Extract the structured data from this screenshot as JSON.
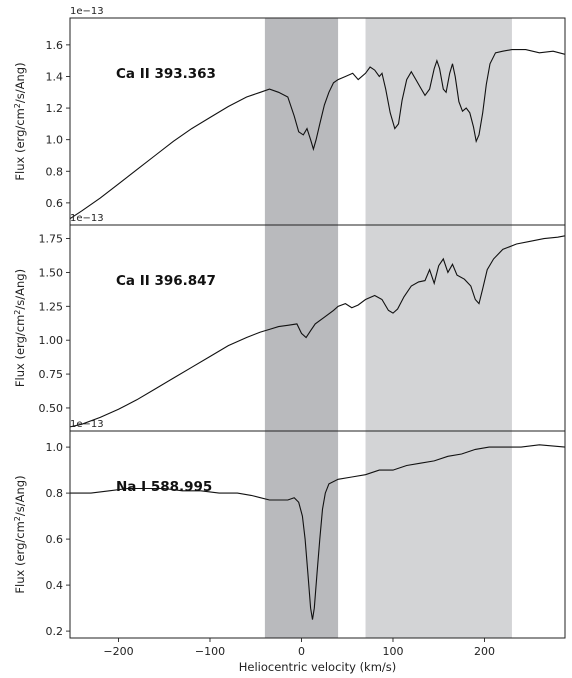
{
  "chart_data": {
    "type": "line",
    "xlabel": "Heliocentric velocity (km/s)",
    "xlim": [
      -253,
      288
    ],
    "x_ticks": [
      -200,
      -100,
      0,
      100,
      200
    ],
    "x_tick_labels": [
      "−200",
      "−100",
      "0",
      "100",
      "200"
    ],
    "shaded_regions": [
      {
        "x": [
          -40,
          40
        ],
        "color": "#b9babd"
      },
      {
        "x": [
          70,
          230
        ],
        "color": "#d3d4d6"
      }
    ],
    "panels": [
      {
        "label": "Ca II 393.363",
        "ylabel": "Flux (erg/cm²/s/Ang)",
        "offset_text": "1e−13",
        "ylim": [
          0.46,
          1.77
        ],
        "y_ticks": [
          0.6,
          0.8,
          1.0,
          1.2,
          1.4,
          1.6
        ],
        "y_tick_labels": [
          "0.6",
          "0.8",
          "1.0",
          "1.2",
          "1.4",
          "1.6"
        ],
        "points": [
          [
            -253,
            0.5
          ],
          [
            -240,
            0.55
          ],
          [
            -220,
            0.63
          ],
          [
            -200,
            0.72
          ],
          [
            -180,
            0.81
          ],
          [
            -160,
            0.9
          ],
          [
            -140,
            0.99
          ],
          [
            -120,
            1.07
          ],
          [
            -100,
            1.14
          ],
          [
            -80,
            1.21
          ],
          [
            -60,
            1.27
          ],
          [
            -45,
            1.3
          ],
          [
            -35,
            1.32
          ],
          [
            -25,
            1.3
          ],
          [
            -15,
            1.27
          ],
          [
            -8,
            1.15
          ],
          [
            -3,
            1.05
          ],
          [
            2,
            1.03
          ],
          [
            6,
            1.07
          ],
          [
            10,
            1.0
          ],
          [
            13,
            0.94
          ],
          [
            16,
            1.0
          ],
          [
            20,
            1.1
          ],
          [
            25,
            1.22
          ],
          [
            30,
            1.3
          ],
          [
            35,
            1.36
          ],
          [
            40,
            1.38
          ],
          [
            48,
            1.4
          ],
          [
            56,
            1.42
          ],
          [
            62,
            1.38
          ],
          [
            70,
            1.42
          ],
          [
            75,
            1.46
          ],
          [
            80,
            1.44
          ],
          [
            85,
            1.4
          ],
          [
            88,
            1.42
          ],
          [
            92,
            1.32
          ],
          [
            97,
            1.17
          ],
          [
            102,
            1.07
          ],
          [
            106,
            1.1
          ],
          [
            110,
            1.25
          ],
          [
            115,
            1.38
          ],
          [
            120,
            1.43
          ],
          [
            125,
            1.38
          ],
          [
            130,
            1.33
          ],
          [
            135,
            1.28
          ],
          [
            140,
            1.32
          ],
          [
            145,
            1.45
          ],
          [
            148,
            1.5
          ],
          [
            151,
            1.45
          ],
          [
            155,
            1.32
          ],
          [
            158,
            1.3
          ],
          [
            162,
            1.42
          ],
          [
            165,
            1.48
          ],
          [
            168,
            1.4
          ],
          [
            172,
            1.24
          ],
          [
            176,
            1.18
          ],
          [
            180,
            1.2
          ],
          [
            184,
            1.17
          ],
          [
            188,
            1.08
          ],
          [
            191,
            0.99
          ],
          [
            194,
            1.03
          ],
          [
            198,
            1.17
          ],
          [
            202,
            1.35
          ],
          [
            206,
            1.48
          ],
          [
            212,
            1.55
          ],
          [
            220,
            1.56
          ],
          [
            230,
            1.57
          ],
          [
            245,
            1.57
          ],
          [
            260,
            1.55
          ],
          [
            275,
            1.56
          ],
          [
            288,
            1.54
          ]
        ]
      },
      {
        "label": "Ca II 396.847",
        "ylabel": "Flux (erg/cm²/s/Ang)",
        "offset_text": "1e−13",
        "ylim": [
          0.33,
          1.85
        ],
        "y_ticks": [
          0.5,
          0.75,
          1.0,
          1.25,
          1.5,
          1.75
        ],
        "y_tick_labels": [
          "0.50",
          "0.75",
          "1.00",
          "1.25",
          "1.50",
          "1.75"
        ],
        "points": [
          [
            -253,
            0.36
          ],
          [
            -240,
            0.38
          ],
          [
            -220,
            0.43
          ],
          [
            -200,
            0.49
          ],
          [
            -180,
            0.56
          ],
          [
            -160,
            0.64
          ],
          [
            -140,
            0.72
          ],
          [
            -120,
            0.8
          ],
          [
            -100,
            0.88
          ],
          [
            -80,
            0.96
          ],
          [
            -60,
            1.02
          ],
          [
            -45,
            1.06
          ],
          [
            -35,
            1.08
          ],
          [
            -25,
            1.1
          ],
          [
            -15,
            1.11
          ],
          [
            -5,
            1.12
          ],
          [
            0,
            1.05
          ],
          [
            5,
            1.02
          ],
          [
            10,
            1.07
          ],
          [
            15,
            1.12
          ],
          [
            25,
            1.17
          ],
          [
            35,
            1.22
          ],
          [
            40,
            1.25
          ],
          [
            48,
            1.27
          ],
          [
            55,
            1.24
          ],
          [
            62,
            1.26
          ],
          [
            70,
            1.3
          ],
          [
            80,
            1.33
          ],
          [
            88,
            1.3
          ],
          [
            95,
            1.22
          ],
          [
            100,
            1.2
          ],
          [
            105,
            1.23
          ],
          [
            112,
            1.32
          ],
          [
            120,
            1.4
          ],
          [
            128,
            1.43
          ],
          [
            135,
            1.44
          ],
          [
            140,
            1.52
          ],
          [
            145,
            1.42
          ],
          [
            150,
            1.55
          ],
          [
            155,
            1.6
          ],
          [
            160,
            1.5
          ],
          [
            165,
            1.56
          ],
          [
            170,
            1.48
          ],
          [
            178,
            1.45
          ],
          [
            185,
            1.4
          ],
          [
            190,
            1.3
          ],
          [
            194,
            1.27
          ],
          [
            198,
            1.38
          ],
          [
            203,
            1.52
          ],
          [
            210,
            1.6
          ],
          [
            220,
            1.67
          ],
          [
            235,
            1.71
          ],
          [
            250,
            1.73
          ],
          [
            265,
            1.75
          ],
          [
            280,
            1.76
          ],
          [
            288,
            1.77
          ]
        ]
      },
      {
        "label": "Na I 588.995",
        "ylabel": "Flux (erg/cm²/s/Ang)",
        "offset_text": "1e−13",
        "ylim": [
          0.17,
          1.07
        ],
        "y_ticks": [
          0.2,
          0.4,
          0.6,
          0.8,
          1.0
        ],
        "y_tick_labels": [
          "0.2",
          "0.4",
          "0.6",
          "0.8",
          "1.0"
        ],
        "points": [
          [
            -253,
            0.8
          ],
          [
            -230,
            0.8
          ],
          [
            -210,
            0.81
          ],
          [
            -190,
            0.82
          ],
          [
            -170,
            0.82
          ],
          [
            -150,
            0.82
          ],
          [
            -130,
            0.81
          ],
          [
            -110,
            0.81
          ],
          [
            -90,
            0.8
          ],
          [
            -70,
            0.8
          ],
          [
            -55,
            0.79
          ],
          [
            -45,
            0.78
          ],
          [
            -35,
            0.77
          ],
          [
            -25,
            0.77
          ],
          [
            -15,
            0.77
          ],
          [
            -8,
            0.78
          ],
          [
            -3,
            0.76
          ],
          [
            1,
            0.7
          ],
          [
            4,
            0.6
          ],
          [
            7,
            0.45
          ],
          [
            10,
            0.3
          ],
          [
            12,
            0.25
          ],
          [
            14,
            0.3
          ],
          [
            17,
            0.45
          ],
          [
            20,
            0.6
          ],
          [
            23,
            0.73
          ],
          [
            26,
            0.8
          ],
          [
            30,
            0.84
          ],
          [
            40,
            0.86
          ],
          [
            55,
            0.87
          ],
          [
            70,
            0.88
          ],
          [
            85,
            0.9
          ],
          [
            100,
            0.9
          ],
          [
            115,
            0.92
          ],
          [
            130,
            0.93
          ],
          [
            145,
            0.94
          ],
          [
            160,
            0.96
          ],
          [
            175,
            0.97
          ],
          [
            190,
            0.99
          ],
          [
            205,
            1.0
          ],
          [
            220,
            1.0
          ],
          [
            240,
            1.0
          ],
          [
            260,
            1.01
          ],
          [
            288,
            1.0
          ]
        ]
      }
    ]
  }
}
